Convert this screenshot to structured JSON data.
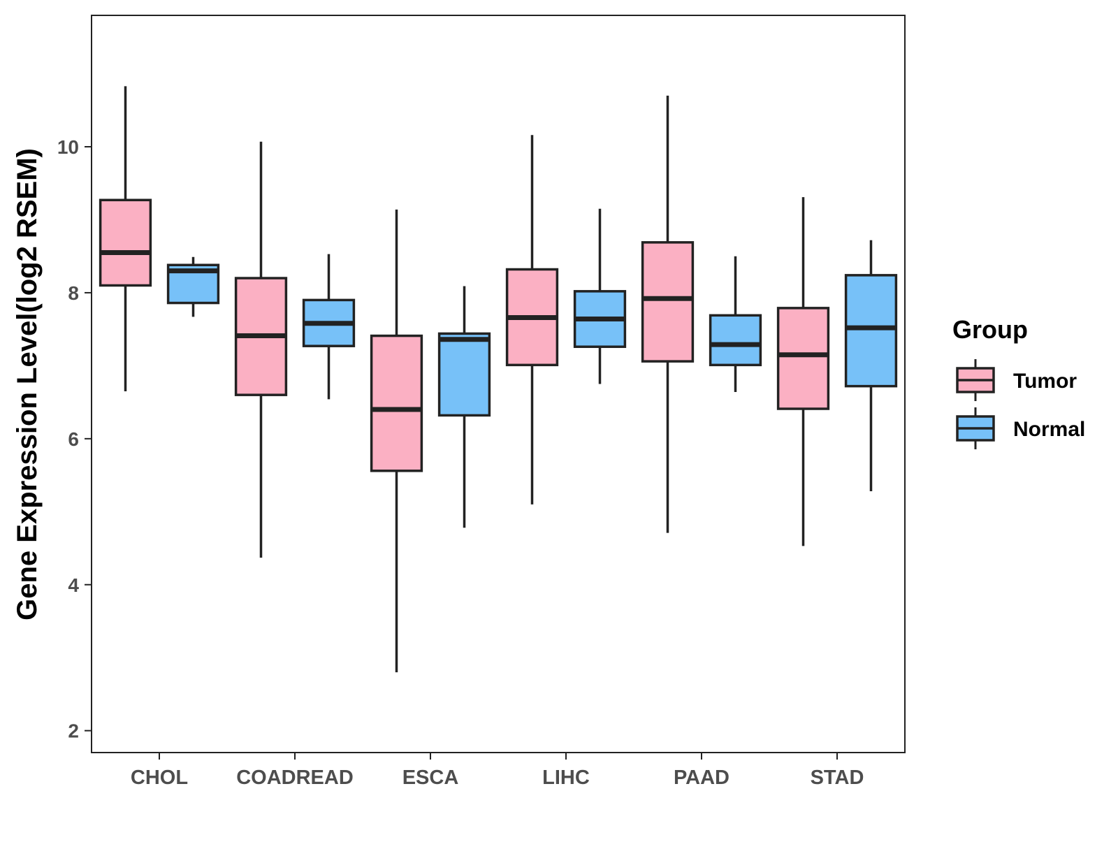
{
  "chart_data": {
    "type": "boxplot",
    "title": "",
    "xlabel": "",
    "ylabel": "Gene Expression Level(log2 RSEM)",
    "ylim": [
      1.7,
      11.8
    ],
    "yticks": [
      2,
      4,
      6,
      8,
      10
    ],
    "grid": false,
    "categories": [
      "CHOL",
      "COADREAD",
      "ESCA",
      "LIHC",
      "PAAD",
      "STAD"
    ],
    "legend": {
      "title": "Group",
      "position": "right",
      "entries": [
        {
          "name": "Tumor",
          "color": "#FBB0C3"
        },
        {
          "name": "Normal",
          "color": "#77C1F8"
        }
      ]
    },
    "series": [
      {
        "name": "Tumor",
        "color": "#FBB0C3",
        "boxes": [
          {
            "category": "CHOL",
            "min": 6.65,
            "q1": 8.1,
            "median": 8.55,
            "q3": 9.27,
            "max": 10.83
          },
          {
            "category": "COADREAD",
            "min": 4.37,
            "q1": 6.6,
            "median": 7.41,
            "q3": 8.2,
            "max": 10.07
          },
          {
            "category": "ESCA",
            "min": 2.8,
            "q1": 5.56,
            "median": 6.4,
            "q3": 7.41,
            "max": 9.14
          },
          {
            "category": "LIHC",
            "min": 5.1,
            "q1": 7.01,
            "median": 7.66,
            "q3": 8.32,
            "max": 10.16
          },
          {
            "category": "PAAD",
            "min": 4.71,
            "q1": 7.06,
            "median": 7.92,
            "q3": 8.69,
            "max": 10.7
          },
          {
            "category": "STAD",
            "min": 4.53,
            "q1": 6.41,
            "median": 7.15,
            "q3": 7.79,
            "max": 9.31
          }
        ]
      },
      {
        "name": "Normal",
        "color": "#77C1F8",
        "boxes": [
          {
            "category": "CHOL",
            "min": 7.67,
            "q1": 7.86,
            "median": 8.3,
            "q3": 8.38,
            "max": 8.49
          },
          {
            "category": "COADREAD",
            "min": 6.54,
            "q1": 7.27,
            "median": 7.58,
            "q3": 7.9,
            "max": 8.53
          },
          {
            "category": "ESCA",
            "min": 4.78,
            "q1": 6.32,
            "median": 7.36,
            "q3": 7.44,
            "max": 8.09
          },
          {
            "category": "LIHC",
            "min": 6.75,
            "q1": 7.26,
            "median": 7.64,
            "q3": 8.02,
            "max": 9.15
          },
          {
            "category": "PAAD",
            "min": 6.64,
            "q1": 7.01,
            "median": 7.29,
            "q3": 7.69,
            "max": 8.5
          },
          {
            "category": "STAD",
            "min": 5.28,
            "q1": 6.72,
            "median": 7.52,
            "q3": 8.24,
            "max": 8.72
          }
        ]
      }
    ]
  }
}
